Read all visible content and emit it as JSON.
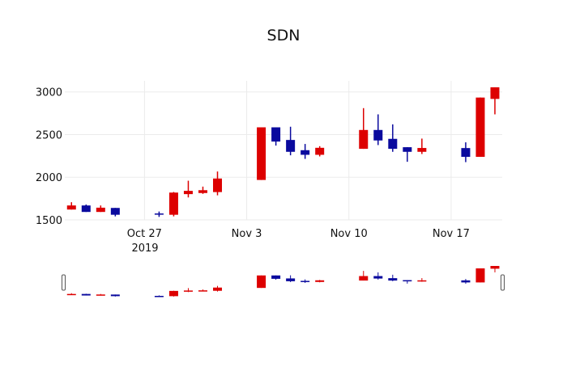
{
  "chart_data": {
    "type": "candlestick",
    "title": "SDN",
    "xlabel": "",
    "ylabel": "",
    "x_tick_labels": [
      "Oct 27",
      "Nov 3",
      "Nov 10",
      "Nov 17"
    ],
    "x_tick_dates": [
      "2019-10-27",
      "2019-11-03",
      "2019-11-10",
      "2019-11-17"
    ],
    "x_year_label": "2019",
    "xlim": [
      "2019-10-21T13:00",
      "2019-11-20T12:00"
    ],
    "y_ticks": [
      1500,
      2000,
      2500,
      3000
    ],
    "ylim": [
      1500,
      3130
    ],
    "grid": true,
    "range_slider": true,
    "increasing_color": "#dd0000",
    "decreasing_color": "#0a0a9e",
    "candles": [
      {
        "date": "2019-10-22",
        "open": 1621,
        "high": 1707,
        "low": 1621,
        "close": 1669
      },
      {
        "date": "2019-10-23",
        "open": 1669,
        "high": 1680,
        "low": 1593,
        "close": 1593
      },
      {
        "date": "2019-10-24",
        "open": 1593,
        "high": 1669,
        "low": 1593,
        "close": 1643
      },
      {
        "date": "2019-10-25",
        "open": 1640,
        "high": 1640,
        "low": 1541,
        "close": 1560
      },
      {
        "date": "2019-10-28",
        "open": 1575,
        "high": 1598,
        "low": 1535,
        "close": 1562
      },
      {
        "date": "2019-10-29",
        "open": 1560,
        "high": 1827,
        "low": 1541,
        "close": 1820
      },
      {
        "date": "2019-10-30",
        "open": 1802,
        "high": 1959,
        "low": 1763,
        "close": 1840
      },
      {
        "date": "2019-10-31",
        "open": 1815,
        "high": 1890,
        "low": 1805,
        "close": 1848
      },
      {
        "date": "2019-11-01",
        "open": 1826,
        "high": 2067,
        "low": 1788,
        "close": 1985
      },
      {
        "date": "2019-11-04",
        "open": 1968,
        "high": 2585,
        "low": 1968,
        "close": 2585
      },
      {
        "date": "2019-11-05",
        "open": 2585,
        "high": 2585,
        "low": 2371,
        "close": 2418
      },
      {
        "date": "2019-11-06",
        "open": 2437,
        "high": 2592,
        "low": 2257,
        "close": 2298
      },
      {
        "date": "2019-11-07",
        "open": 2317,
        "high": 2390,
        "low": 2215,
        "close": 2263
      },
      {
        "date": "2019-11-08",
        "open": 2263,
        "high": 2364,
        "low": 2244,
        "close": 2345
      },
      {
        "date": "2019-11-11",
        "open": 2333,
        "high": 2810,
        "low": 2333,
        "close": 2554
      },
      {
        "date": "2019-11-12",
        "open": 2554,
        "high": 2737,
        "low": 2377,
        "close": 2431
      },
      {
        "date": "2019-11-13",
        "open": 2450,
        "high": 2620,
        "low": 2298,
        "close": 2333
      },
      {
        "date": "2019-11-14",
        "open": 2352,
        "high": 2352,
        "low": 2181,
        "close": 2298
      },
      {
        "date": "2019-11-15",
        "open": 2298,
        "high": 2453,
        "low": 2272,
        "close": 2343
      },
      {
        "date": "2019-11-18",
        "open": 2342,
        "high": 2409,
        "low": 2177,
        "close": 2239
      },
      {
        "date": "2019-11-19",
        "open": 2239,
        "high": 2934,
        "low": 2239,
        "close": 2934
      },
      {
        "date": "2019-11-20",
        "open": 2918,
        "high": 3054,
        "low": 2737,
        "close": 3054
      }
    ]
  }
}
